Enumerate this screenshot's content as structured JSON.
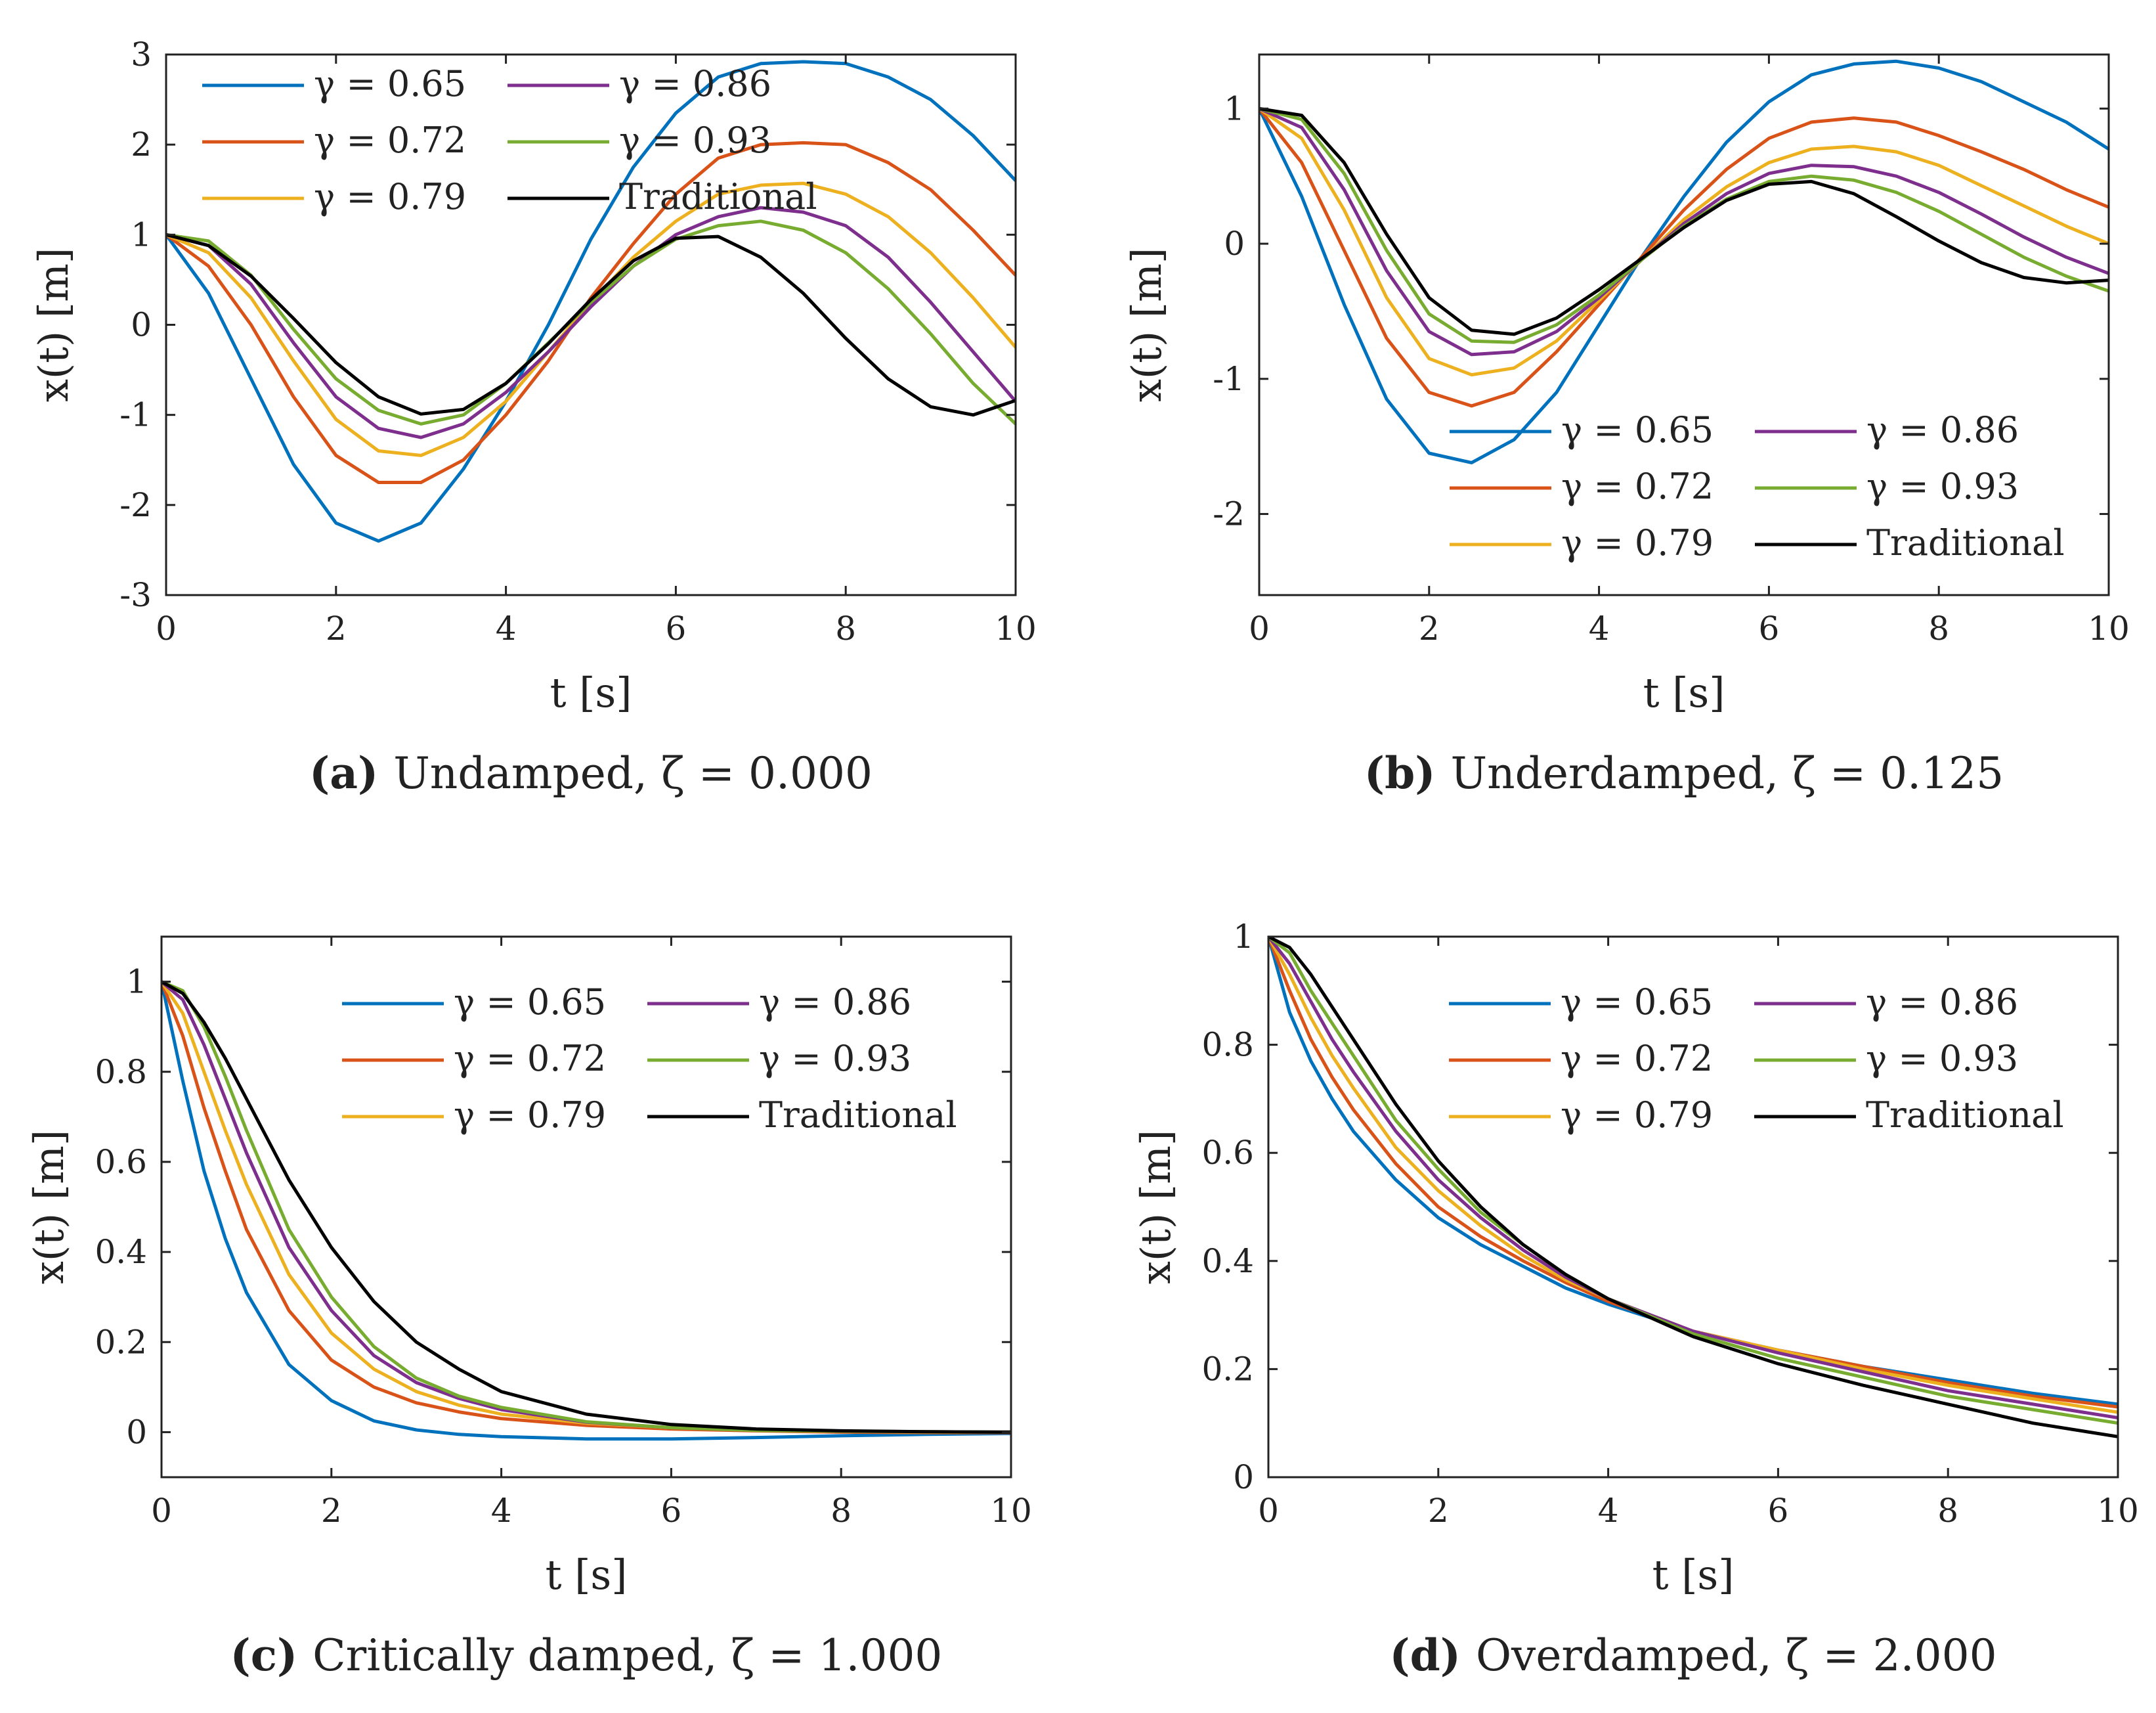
{
  "colors": {
    "g065": "#0072BD",
    "g072": "#D95319",
    "g079": "#EDB120",
    "g086": "#7E2F8E",
    "g093": "#77AC30",
    "trad": "#000000"
  },
  "chart_data": [
    {
      "type": "line",
      "panel": "a",
      "caption_label": "(a)",
      "caption_text": "Undamped, ζ = 0.000",
      "xlabel": "t [s]",
      "ylabel": "x(t) [m]",
      "xlim": [
        0,
        10
      ],
      "ylim": [
        -3,
        3
      ],
      "xticks": [
        "0",
        "2",
        "4",
        "6",
        "8",
        "10"
      ],
      "yticks": [
        "-3",
        "-2",
        "-1",
        "0",
        "1",
        "2",
        "3"
      ],
      "legend_loc": "top-left",
      "x": [
        0,
        0.5,
        1,
        1.5,
        2,
        2.5,
        3,
        3.5,
        4,
        4.5,
        5,
        5.5,
        6,
        6.5,
        7,
        7.5,
        8,
        8.5,
        9,
        9.5,
        10
      ],
      "series": [
        {
          "name": "γ = 0.65",
          "color_key": "g065",
          "values": [
            1,
            0.35,
            -0.6,
            -1.55,
            -2.2,
            -2.4,
            -2.2,
            -1.6,
            -0.85,
            0,
            0.95,
            1.75,
            2.35,
            2.75,
            2.9,
            2.92,
            2.9,
            2.75,
            2.5,
            2.1,
            1.6
          ]
        },
        {
          "name": "γ = 0.72",
          "color_key": "g072",
          "values": [
            1,
            0.65,
            0,
            -0.8,
            -1.45,
            -1.75,
            -1.75,
            -1.5,
            -1,
            -0.4,
            0.3,
            0.9,
            1.45,
            1.85,
            2,
            2.02,
            2,
            1.8,
            1.5,
            1.05,
            0.55
          ]
        },
        {
          "name": "γ = 0.79",
          "color_key": "g079",
          "values": [
            1,
            0.8,
            0.3,
            -0.4,
            -1.05,
            -1.4,
            -1.45,
            -1.25,
            -0.85,
            -0.3,
            0.25,
            0.75,
            1.15,
            1.45,
            1.55,
            1.57,
            1.45,
            1.2,
            0.8,
            0.3,
            -0.25
          ]
        },
        {
          "name": "γ = 0.86",
          "color_key": "g086",
          "values": [
            1,
            0.88,
            0.45,
            -0.2,
            -0.8,
            -1.15,
            -1.25,
            -1.1,
            -0.75,
            -0.3,
            0.2,
            0.65,
            1,
            1.2,
            1.3,
            1.25,
            1.1,
            0.75,
            0.25,
            -0.3,
            -0.85
          ]
        },
        {
          "name": "γ = 0.93",
          "color_key": "g093",
          "values": [
            1,
            0.93,
            0.55,
            -0.05,
            -0.6,
            -0.95,
            -1.1,
            -1,
            -0.65,
            -0.2,
            0.25,
            0.65,
            0.95,
            1.1,
            1.15,
            1.05,
            0.8,
            0.4,
            -0.1,
            -0.65,
            -1.1
          ]
        },
        {
          "name": "Traditional",
          "color_key": "trad",
          "values": [
            1,
            0.88,
            0.54,
            0.07,
            -0.42,
            -0.8,
            -0.99,
            -0.94,
            -0.65,
            -0.21,
            0.28,
            0.71,
            0.96,
            0.98,
            0.75,
            0.35,
            -0.15,
            -0.6,
            -0.91,
            -1,
            -0.84
          ]
        }
      ]
    },
    {
      "type": "line",
      "panel": "b",
      "caption_label": "(b)",
      "caption_text": "Underdamped, ζ = 0.125",
      "xlabel": "t [s]",
      "ylabel": "x(t) [m]",
      "xlim": [
        0,
        10
      ],
      "ylim": [
        -2.6,
        1.4
      ],
      "xticks": [
        "0",
        "2",
        "4",
        "6",
        "8",
        "10"
      ],
      "yticks": [
        "-2",
        "-1",
        "0",
        "1"
      ],
      "ytick_values": [
        -2,
        -1,
        0,
        1
      ],
      "legend_loc": "bottom-right",
      "x": [
        0,
        0.5,
        1,
        1.5,
        2,
        2.5,
        3,
        3.5,
        4,
        4.5,
        5,
        5.5,
        6,
        6.5,
        7,
        7.5,
        8,
        8.5,
        9,
        9.5,
        10
      ],
      "series": [
        {
          "name": "γ = 0.65",
          "color_key": "g065",
          "values": [
            1,
            0.35,
            -0.45,
            -1.15,
            -1.55,
            -1.62,
            -1.45,
            -1.1,
            -0.6,
            -0.1,
            0.35,
            0.75,
            1.05,
            1.25,
            1.33,
            1.35,
            1.3,
            1.2,
            1.05,
            0.9,
            0.7
          ]
        },
        {
          "name": "γ = 0.72",
          "color_key": "g072",
          "values": [
            1,
            0.6,
            -0.05,
            -0.7,
            -1.1,
            -1.2,
            -1.1,
            -0.8,
            -0.45,
            -0.1,
            0.25,
            0.55,
            0.78,
            0.9,
            0.93,
            0.9,
            0.8,
            0.68,
            0.55,
            0.4,
            0.27
          ]
        },
        {
          "name": "γ = 0.79",
          "color_key": "g079",
          "values": [
            1,
            0.78,
            0.25,
            -0.4,
            -0.85,
            -0.97,
            -0.92,
            -0.72,
            -0.42,
            -0.12,
            0.18,
            0.42,
            0.6,
            0.7,
            0.72,
            0.68,
            0.58,
            0.43,
            0.28,
            0.13,
            0
          ]
        },
        {
          "name": "γ = 0.86",
          "color_key": "g086",
          "values": [
            1,
            0.86,
            0.4,
            -0.2,
            -0.65,
            -0.82,
            -0.8,
            -0.65,
            -0.4,
            -0.12,
            0.15,
            0.37,
            0.52,
            0.58,
            0.57,
            0.5,
            0.38,
            0.22,
            0.05,
            -0.1,
            -0.22
          ]
        },
        {
          "name": "γ = 0.93",
          "color_key": "g093",
          "values": [
            1,
            0.92,
            0.52,
            -0.05,
            -0.52,
            -0.72,
            -0.73,
            -0.6,
            -0.38,
            -0.12,
            0.13,
            0.33,
            0.46,
            0.5,
            0.47,
            0.38,
            0.24,
            0.07,
            -0.1,
            -0.24,
            -0.35
          ]
        },
        {
          "name": "Traditional",
          "color_key": "trad",
          "values": [
            1,
            0.95,
            0.6,
            0.07,
            -0.4,
            -0.64,
            -0.67,
            -0.55,
            -0.34,
            -0.11,
            0.12,
            0.32,
            0.44,
            0.46,
            0.37,
            0.2,
            0.02,
            -0.14,
            -0.25,
            -0.29,
            -0.27
          ]
        }
      ]
    },
    {
      "type": "line",
      "panel": "c",
      "caption_label": "(c)",
      "caption_text": "Critically damped, ζ = 1.000",
      "xlabel": "t [s]",
      "ylabel": "x(t) [m]",
      "xlim": [
        0,
        10
      ],
      "ylim": [
        -0.1,
        1.1
      ],
      "xticks": [
        "0",
        "2",
        "4",
        "6",
        "8",
        "10"
      ],
      "yticks": [
        "0",
        "0.2",
        "0.4",
        "0.6",
        "0.8",
        "1"
      ],
      "ytick_values": [
        0,
        0.2,
        0.4,
        0.6,
        0.8,
        1
      ],
      "legend_loc": "top-right",
      "x": [
        0,
        0.25,
        0.5,
        0.75,
        1,
        1.5,
        2,
        2.5,
        3,
        3.5,
        4,
        5,
        6,
        7,
        8,
        9,
        10
      ],
      "series": [
        {
          "name": "γ = 0.65",
          "color_key": "g065",
          "values": [
            1,
            0.78,
            0.58,
            0.43,
            0.31,
            0.15,
            0.07,
            0.025,
            0.005,
            -0.005,
            -0.01,
            -0.015,
            -0.015,
            -0.012,
            -0.008,
            -0.005,
            -0.003
          ]
        },
        {
          "name": "γ = 0.72",
          "color_key": "g072",
          "values": [
            1,
            0.88,
            0.72,
            0.58,
            0.45,
            0.27,
            0.16,
            0.1,
            0.065,
            0.045,
            0.03,
            0.015,
            0.007,
            0.003,
            0,
            -0.001,
            -0.001
          ]
        },
        {
          "name": "γ = 0.79",
          "color_key": "g079",
          "values": [
            1,
            0.93,
            0.8,
            0.67,
            0.55,
            0.35,
            0.22,
            0.14,
            0.09,
            0.06,
            0.04,
            0.02,
            0.01,
            0.005,
            0.002,
            0,
            0
          ]
        },
        {
          "name": "γ = 0.86",
          "color_key": "g086",
          "values": [
            1,
            0.96,
            0.86,
            0.74,
            0.62,
            0.41,
            0.27,
            0.17,
            0.11,
            0.075,
            0.05,
            0.022,
            0.01,
            0.005,
            0.002,
            0.001,
            0
          ]
        },
        {
          "name": "γ = 0.93",
          "color_key": "g093",
          "values": [
            1,
            0.98,
            0.9,
            0.79,
            0.67,
            0.45,
            0.3,
            0.19,
            0.12,
            0.08,
            0.055,
            0.023,
            0.01,
            0.004,
            0.002,
            0.001,
            0
          ]
        },
        {
          "name": "Traditional",
          "color_key": "trad",
          "values": [
            1,
            0.974,
            0.91,
            0.83,
            0.74,
            0.56,
            0.41,
            0.29,
            0.2,
            0.14,
            0.09,
            0.04,
            0.017,
            0.007,
            0.003,
            0.001,
            0
          ]
        }
      ]
    },
    {
      "type": "line",
      "panel": "d",
      "caption_label": "(d)",
      "caption_text": "Overdamped, ζ = 2.000",
      "xlabel": "t [s]",
      "ylabel": "x(t) [m]",
      "xlim": [
        0,
        10
      ],
      "ylim": [
        0,
        1
      ],
      "xticks": [
        "0",
        "2",
        "4",
        "6",
        "8",
        "10"
      ],
      "yticks": [
        "0",
        "0.2",
        "0.4",
        "0.6",
        "0.8",
        "1"
      ],
      "ytick_values": [
        0,
        0.2,
        0.4,
        0.6,
        0.8,
        1
      ],
      "legend_loc": "top-right",
      "x": [
        0,
        0.25,
        0.5,
        0.75,
        1,
        1.5,
        2,
        2.5,
        3,
        3.5,
        4,
        5,
        6,
        7,
        8,
        9,
        10
      ],
      "series": [
        {
          "name": "γ = 0.65",
          "color_key": "g065",
          "values": [
            1,
            0.86,
            0.77,
            0.7,
            0.64,
            0.55,
            0.48,
            0.43,
            0.39,
            0.35,
            0.32,
            0.27,
            0.235,
            0.205,
            0.18,
            0.155,
            0.135
          ]
        },
        {
          "name": "γ = 0.72",
          "color_key": "g072",
          "values": [
            1,
            0.9,
            0.81,
            0.74,
            0.68,
            0.58,
            0.5,
            0.445,
            0.4,
            0.36,
            0.325,
            0.27,
            0.235,
            0.205,
            0.175,
            0.15,
            0.13
          ]
        },
        {
          "name": "γ = 0.79",
          "color_key": "g079",
          "values": [
            1,
            0.93,
            0.85,
            0.78,
            0.72,
            0.61,
            0.53,
            0.465,
            0.41,
            0.365,
            0.33,
            0.27,
            0.235,
            0.2,
            0.17,
            0.145,
            0.12
          ]
        },
        {
          "name": "γ = 0.86",
          "color_key": "g086",
          "values": [
            1,
            0.95,
            0.88,
            0.81,
            0.75,
            0.64,
            0.55,
            0.48,
            0.42,
            0.37,
            0.33,
            0.27,
            0.23,
            0.195,
            0.16,
            0.135,
            0.11
          ]
        },
        {
          "name": "γ = 0.93",
          "color_key": "g093",
          "values": [
            1,
            0.97,
            0.9,
            0.84,
            0.78,
            0.66,
            0.57,
            0.49,
            0.43,
            0.375,
            0.33,
            0.265,
            0.22,
            0.185,
            0.15,
            0.125,
            0.1
          ]
        },
        {
          "name": "Traditional",
          "color_key": "trad",
          "values": [
            1,
            0.98,
            0.93,
            0.87,
            0.81,
            0.69,
            0.585,
            0.5,
            0.43,
            0.375,
            0.33,
            0.26,
            0.21,
            0.17,
            0.135,
            0.1,
            0.075
          ]
        }
      ]
    }
  ]
}
